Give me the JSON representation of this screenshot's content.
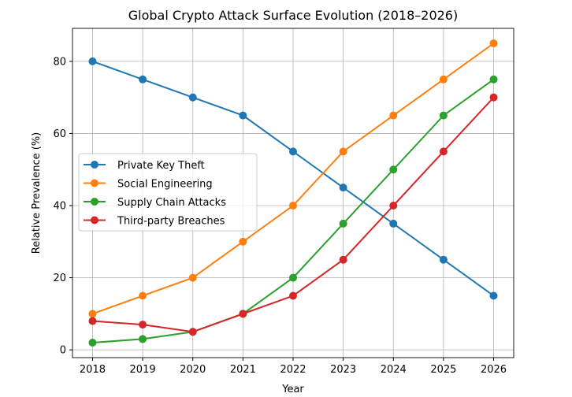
{
  "chart_data": {
    "type": "line",
    "title": "Global Crypto Attack Surface Evolution (2018–2026)",
    "xlabel": "Year",
    "ylabel": "Relative Prevalence (%)",
    "x": [
      2018,
      2019,
      2020,
      2021,
      2022,
      2023,
      2024,
      2025,
      2026
    ],
    "xlim": [
      2017.6,
      2026.4
    ],
    "ylim": [
      -2.15,
      89.15
    ],
    "yticks": [
      0,
      20,
      40,
      60,
      80
    ],
    "grid": true,
    "legend_position": "center-left",
    "series": [
      {
        "name": "Private Key Theft",
        "color": "#1f77b4",
        "values": [
          80,
          75,
          70,
          65,
          55,
          45,
          35,
          25,
          15
        ]
      },
      {
        "name": "Social Engineering",
        "color": "#ff7f0e",
        "values": [
          10,
          15,
          20,
          30,
          40,
          55,
          65,
          75,
          85
        ]
      },
      {
        "name": "Supply Chain Attacks",
        "color": "#2ca02c",
        "values": [
          2,
          3,
          5,
          10,
          20,
          35,
          50,
          65,
          75
        ]
      },
      {
        "name": "Third-party Breaches",
        "color": "#d62728",
        "values": [
          8,
          7,
          5,
          10,
          15,
          25,
          40,
          55,
          70
        ]
      }
    ]
  }
}
